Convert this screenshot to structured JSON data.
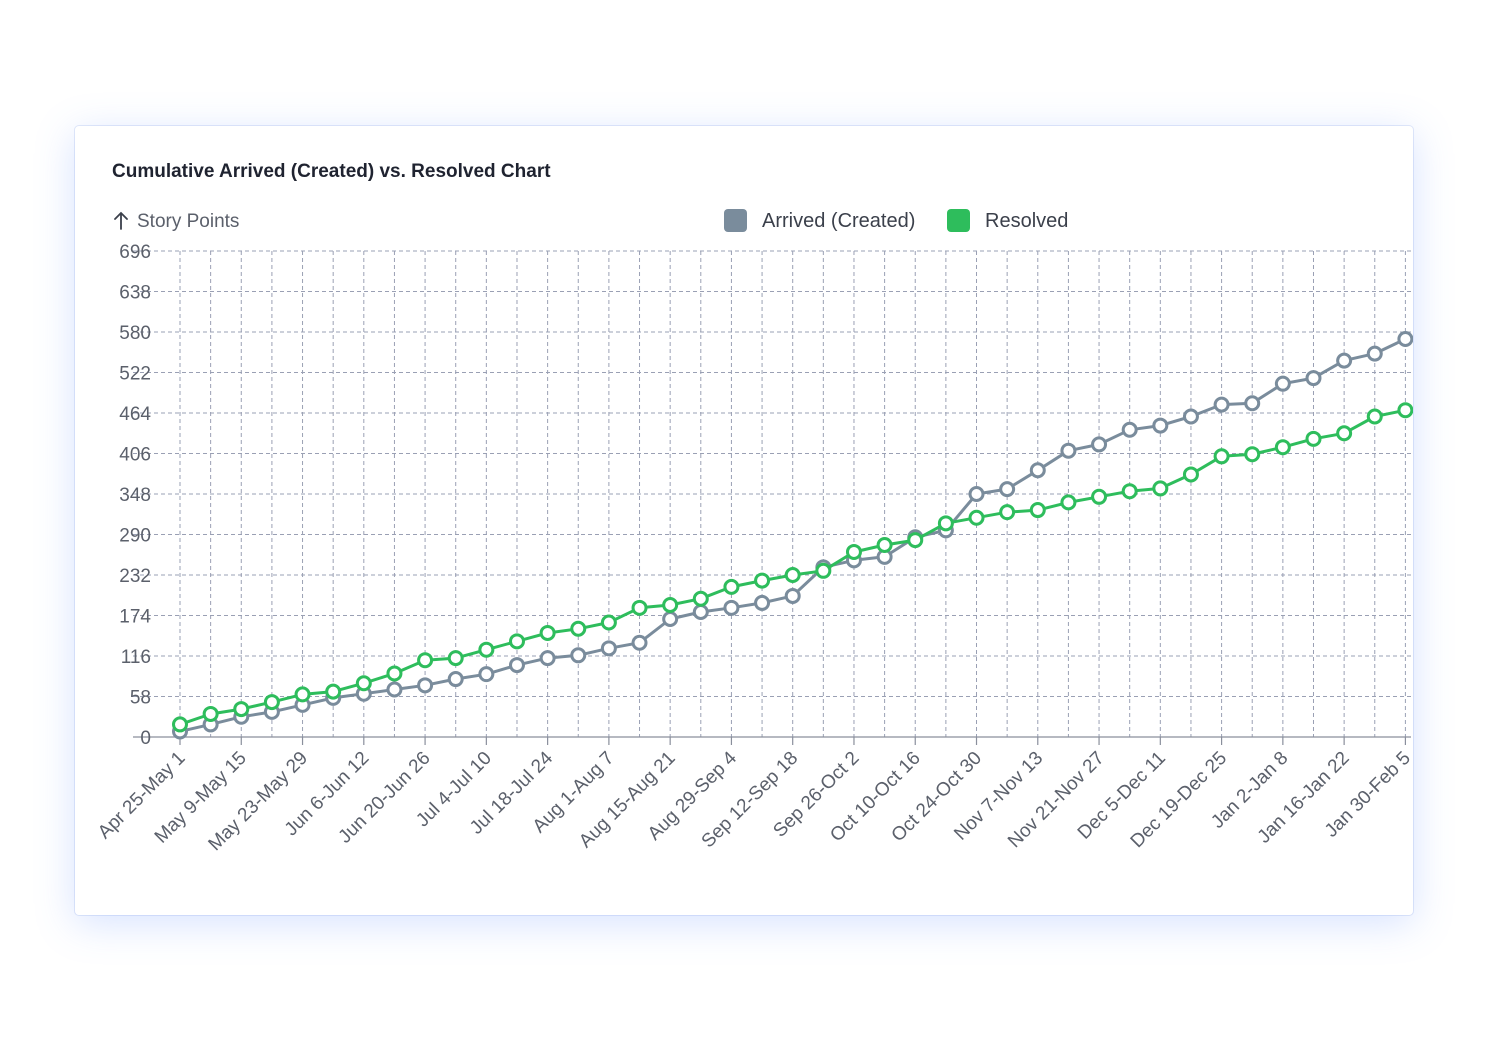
{
  "chart_data": {
    "type": "line",
    "title": "Cumulative Arrived (Created) vs. Resolved Chart",
    "ylabel": "Story Points",
    "ylim": [
      0,
      696
    ],
    "yticks": [
      0,
      58,
      116,
      174,
      232,
      290,
      348,
      406,
      464,
      522,
      580,
      638,
      696
    ],
    "grid": true,
    "legend_position": "top-center",
    "x_labels": [
      "Apr 25-May 1",
      "May 9-May 15",
      "May 23-May 29",
      "Jun 6-Jun 12",
      "Jun 20-Jun 26",
      "Jul 4-Jul 10",
      "Jul 18-Jul 24",
      "Aug 1-Aug 7",
      "Aug 15-Aug 21",
      "Aug 29-Sep 4",
      "Sep 12-Sep 18",
      "Sep 26-Oct 2",
      "Oct 10-Oct 16",
      "Oct 24-Oct 30",
      "Nov 7-Nov 13",
      "Nov 21-Nov 27",
      "Dec 5-Dec 11",
      "Dec 19-Dec 25",
      "Jan 2-Jan 8",
      "Jan 16-Jan 22",
      "Jan 30-Feb 5"
    ],
    "series": [
      {
        "name": "Arrived (Created)",
        "color": "#7a8c9c",
        "values": [
          8,
          18,
          29,
          36,
          46,
          56,
          62,
          68,
          74,
          83,
          90,
          103,
          113,
          117,
          127,
          135,
          169,
          179,
          185,
          192,
          202,
          243,
          253,
          258,
          286,
          296,
          348,
          355,
          382,
          410,
          419,
          440,
          446,
          459,
          476,
          478,
          506,
          514,
          539,
          549,
          570
        ]
      },
      {
        "name": "Resolved",
        "color": "#2ebd5c",
        "values": [
          18,
          33,
          40,
          50,
          61,
          65,
          77,
          91,
          110,
          113,
          125,
          137,
          149,
          155,
          164,
          185,
          189,
          198,
          215,
          224,
          232,
          238,
          265,
          275,
          282,
          306,
          314,
          322,
          325,
          336,
          344,
          352,
          356,
          376,
          402,
          405,
          415,
          427,
          435,
          459,
          468
        ]
      }
    ]
  }
}
